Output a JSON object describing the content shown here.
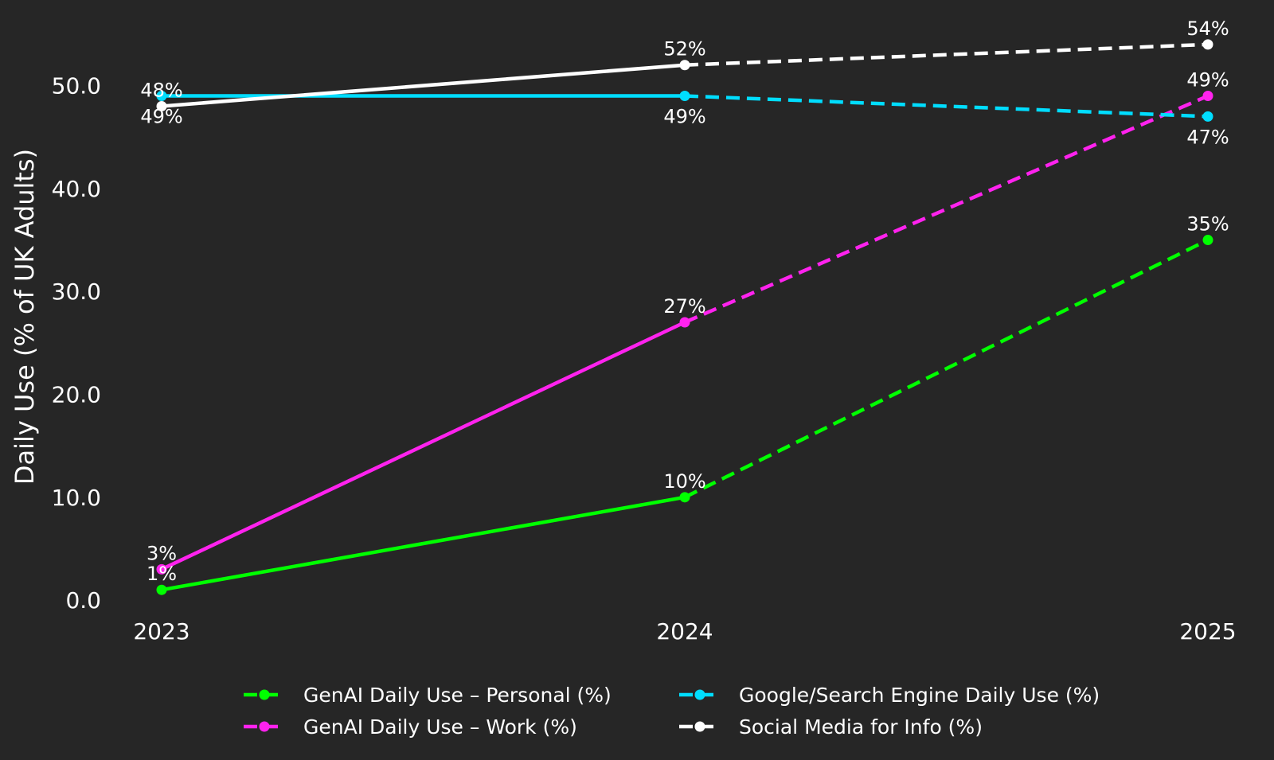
{
  "chart_data": {
    "type": "line",
    "title": "",
    "xlabel": "",
    "ylabel": "Daily Use (% of UK Adults)",
    "x": [
      "2023",
      "2024",
      "2025"
    ],
    "ylim": [
      -2,
      56
    ],
    "yticks": [
      0,
      10,
      20,
      30,
      40,
      50
    ],
    "ytick_labels": [
      "0.0",
      "10.0",
      "20.0",
      "30.0",
      "40.0",
      "50.0"
    ],
    "grid": false,
    "legend_position": "bottom-center",
    "background_color": "#262626",
    "series": [
      {
        "name": "GenAI Daily Use – Personal (%)",
        "color": "#00ff00",
        "values": [
          1,
          10,
          35
        ],
        "point_labels": [
          "1%",
          "10%",
          "35%"
        ],
        "label_positions": [
          "above",
          "above",
          "above"
        ],
        "solid_segments": 1
      },
      {
        "name": "GenAI Daily Use – Work (%)",
        "color": "#ff22ee",
        "values": [
          3,
          27,
          49
        ],
        "point_labels": [
          "3%",
          "27%",
          "49%"
        ],
        "label_positions": [
          "above",
          "above",
          "above"
        ],
        "solid_segments": 1
      },
      {
        "name": "Google/Search Engine Daily Use (%)",
        "color": "#00ddff",
        "values": [
          49,
          49,
          47
        ],
        "point_labels": [
          "49%",
          "49%",
          "47%"
        ],
        "label_positions": [
          "below",
          "below",
          "below"
        ],
        "solid_segments": 1
      },
      {
        "name": "Social Media for Info (%)",
        "color": "#ffffff",
        "values": [
          48,
          52,
          54
        ],
        "point_labels": [
          "48%",
          "52%",
          "54%"
        ],
        "label_positions": [
          "above",
          "above",
          "above"
        ],
        "solid_segments": 1
      }
    ]
  }
}
